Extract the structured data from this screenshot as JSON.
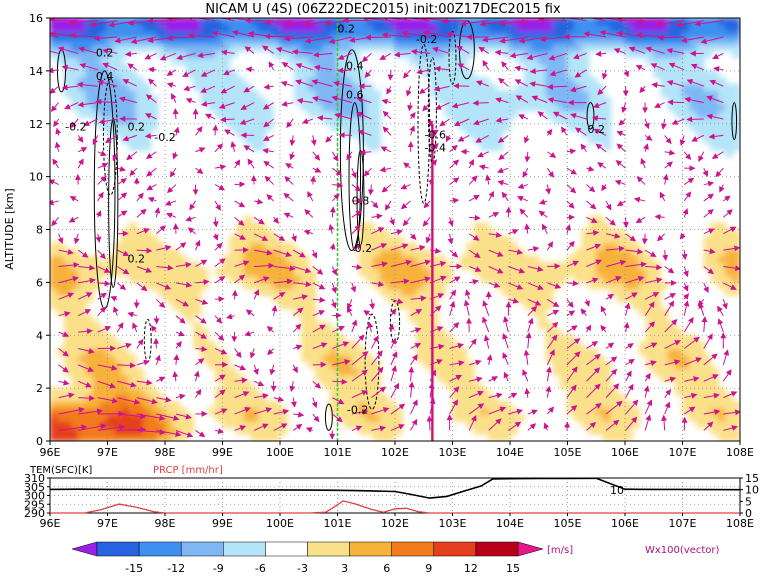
{
  "chart_data": [
    {
      "type": "heatmap",
      "title": "NICAM U (4S) (06Z22DEC2015) init:00Z17DEC2015 fix",
      "ylabel": "ALTITUDE [km]",
      "xlim": [
        96,
        108
      ],
      "ylim": [
        0,
        16
      ],
      "x_ticks": [
        "96E",
        "97E",
        "98E",
        "99E",
        "100E",
        "101E",
        "102E",
        "103E",
        "104E",
        "105E",
        "106E",
        "107E",
        "108E"
      ],
      "y_ticks": [
        "0",
        "2",
        "4",
        "6",
        "8",
        "10",
        "12",
        "14",
        "16"
      ],
      "grid": true,
      "contour_labels": [
        {
          "text": "0.2",
          "x": 96.95,
          "y": 14.7
        },
        {
          "text": "0.4",
          "x": 96.95,
          "y": 13.8
        },
        {
          "text": "-0.2",
          "x": 96.45,
          "y": 11.9
        },
        {
          "text": "0.2",
          "x": 97.5,
          "y": 11.9
        },
        {
          "text": "-0.2",
          "x": 98.0,
          "y": 11.5
        },
        {
          "text": "0.2",
          "x": 97.5,
          "y": 6.9
        },
        {
          "text": "0.2",
          "x": 101.15,
          "y": 15.6
        },
        {
          "text": "0.4",
          "x": 101.3,
          "y": 14.2
        },
        {
          "text": "0.6",
          "x": 101.3,
          "y": 13.1
        },
        {
          "text": "0.8",
          "x": 101.4,
          "y": 9.1
        },
        {
          "text": "0.2",
          "x": 101.45,
          "y": 7.3
        },
        {
          "text": "-0.2",
          "x": 102.55,
          "y": 15.2
        },
        {
          "text": "-0.6",
          "x": 102.7,
          "y": 11.6
        },
        {
          "text": "-0.4",
          "x": 102.7,
          "y": 11.1
        },
        {
          "text": "0.2",
          "x": 105.5,
          "y": 11.8
        },
        {
          "text": "-0.2",
          "x": 101.35,
          "y": 1.2
        }
      ],
      "colorbar": {
        "levels": [
          "-15",
          "-12",
          "-9",
          "-6",
          "-3",
          "3",
          "6",
          "9",
          "12",
          "15"
        ],
        "unit": "[m/s]",
        "colors": [
          "#9a1fe8",
          "#2563e0",
          "#3d8ff0",
          "#7fb7f5",
          "#b4e4f8",
          "#ffffff",
          "#fbe08a",
          "#f7b23a",
          "#f27b1d",
          "#e43f1f",
          "#b8001a",
          "#e8158b"
        ]
      },
      "vector_label": "Wx100(vector)"
    },
    {
      "type": "line",
      "xlim": [
        96,
        108
      ],
      "x_ticks": [
        "96E",
        "97E",
        "98E",
        "99E",
        "100E",
        "101E",
        "102E",
        "103E",
        "104E",
        "105E",
        "106E",
        "107E",
        "108E"
      ],
      "left_axis": {
        "label": "TEM(SFC)[K]",
        "ticks": [
          "290",
          "295",
          "300",
          "305",
          "310"
        ],
        "ylim": [
          290,
          310
        ]
      },
      "right_axis": {
        "label": "PRCP [mm/hr]",
        "ticks": [
          "0",
          "5",
          "10",
          "15"
        ],
        "ylim": [
          0,
          15
        ]
      },
      "contour_label": "10",
      "series": [
        {
          "name": "TEM(SFC)[K]",
          "color": "#000000",
          "x": [
            96,
            96.5,
            97,
            97.5,
            98,
            98.5,
            99,
            99.5,
            100,
            100.5,
            101,
            101.3,
            101.6,
            102,
            102.3,
            102.6,
            102.9,
            103.2,
            103.5,
            103.7,
            104,
            104.5,
            105,
            105.5,
            106,
            106.5,
            107,
            107.5,
            108
          ],
          "y": [
            303.5,
            303.6,
            303.5,
            303.4,
            303.3,
            303.2,
            303.3,
            303.2,
            303.2,
            303.1,
            303.0,
            302.8,
            302.6,
            302.3,
            300.5,
            298.5,
            299.5,
            302.5,
            305.5,
            309.5,
            309.6,
            309.7,
            309.7,
            309.8,
            303.6,
            303.5,
            303.5,
            303.4,
            303.3
          ]
        },
        {
          "name": "PRCP [mm/hr]",
          "color": "#e04040",
          "x": [
            96,
            96.6,
            96.9,
            97.2,
            97.5,
            97.8,
            98.0,
            100.5,
            100.8,
            101.0,
            101.1,
            101.3,
            101.6,
            101.8,
            102.0,
            102.2,
            102.4,
            102.6,
            103,
            104,
            108
          ],
          "y": [
            0,
            0,
            1.5,
            3.8,
            2.5,
            0.6,
            0,
            0,
            0.4,
            3.5,
            5.2,
            4.0,
            1.5,
            0.3,
            1.8,
            2.0,
            0.6,
            0,
            0,
            0,
            0
          ]
        }
      ]
    }
  ]
}
